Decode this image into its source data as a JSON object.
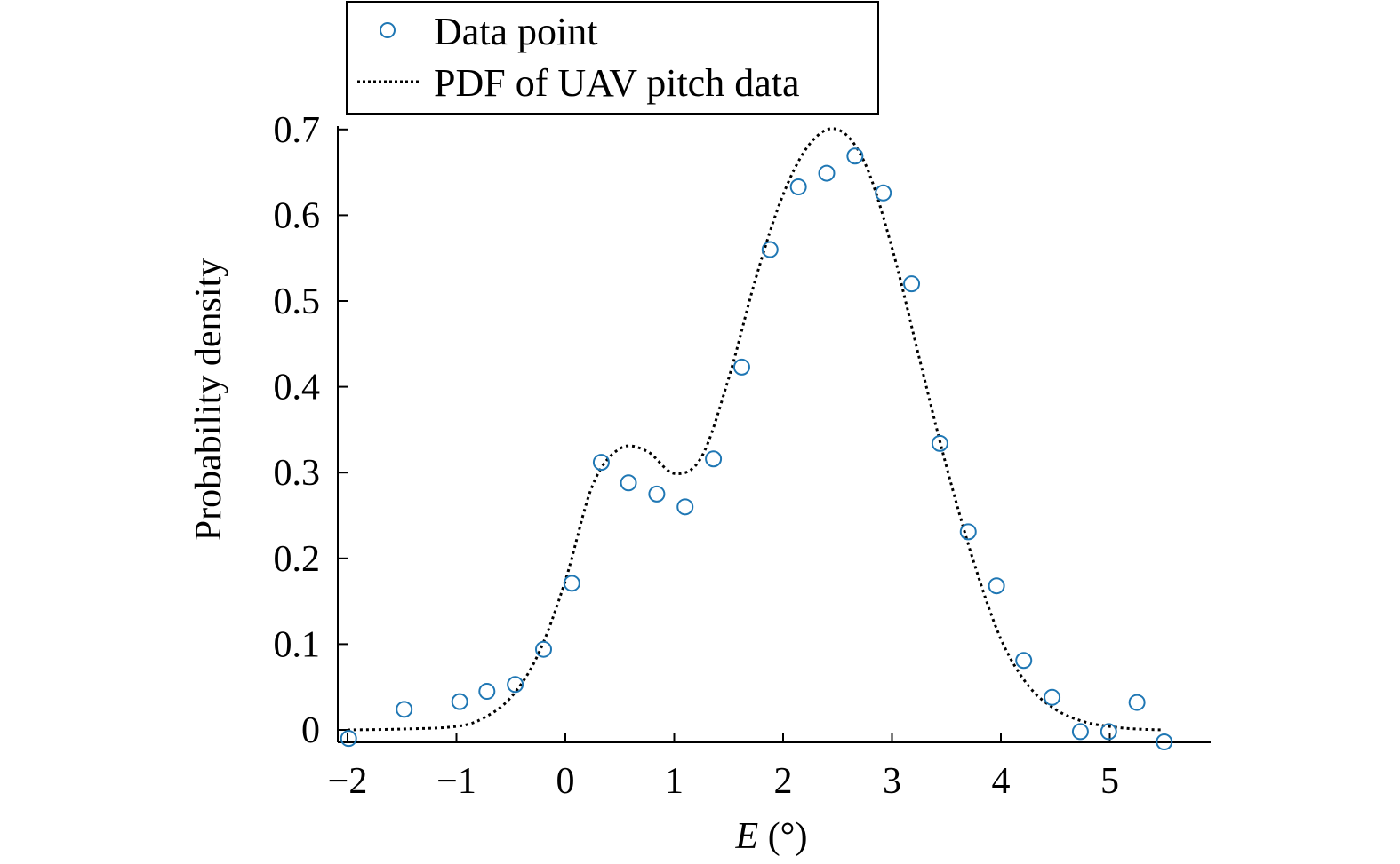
{
  "chart_data": {
    "type": "scatter",
    "title": "",
    "xlabel": {
      "italic": "E",
      "rest": " (°)"
    },
    "ylabel": "Probability density",
    "xlim": [
      -2.1,
      5.9
    ],
    "ylim": [
      0,
      0.7
    ],
    "xticks": [
      -2,
      -1,
      0,
      1,
      2,
      3,
      4,
      5
    ],
    "xtick_labels": [
      "−2",
      "−1",
      "0",
      "1",
      "2",
      "3",
      "4",
      "5"
    ],
    "yticks": [
      0,
      0.1,
      0.2,
      0.3,
      0.4,
      0.5,
      0.6,
      0.7
    ],
    "ytick_labels": [
      "0",
      "0.1",
      "0.2",
      "0.3",
      "0.4",
      "0.5",
      "0.6",
      "0.7"
    ],
    "grid": false,
    "legend_position": "top",
    "colors": {
      "points": "#1f77b4",
      "curve": "#000000",
      "axis": "#000000"
    },
    "series": [
      {
        "name": "Data point",
        "style": "circle-marker",
        "x": [
          -1.99,
          -1.48,
          -0.97,
          -0.72,
          -0.46,
          -0.2,
          0.06,
          0.33,
          0.58,
          0.84,
          1.1,
          1.36,
          1.62,
          1.88,
          2.14,
          2.4,
          2.66,
          2.92,
          3.18,
          3.44,
          3.7,
          3.96,
          4.21,
          4.47,
          4.73,
          4.99,
          5.25,
          5.5
        ],
        "y": [
          -0.01,
          0.024,
          0.033,
          0.045,
          0.053,
          0.094,
          0.171,
          0.312,
          0.288,
          0.275,
          0.26,
          0.316,
          0.423,
          0.56,
          0.633,
          0.649,
          0.669,
          0.626,
          0.52,
          0.334,
          0.231,
          0.168,
          0.081,
          0.038,
          -0.002,
          -0.002,
          0.032,
          -0.014
        ]
      },
      {
        "name": "PDF of UAV pitch data",
        "style": "dotted-line",
        "x": [
          -2.0,
          -1.5,
          -1.0,
          -0.75,
          -0.5,
          -0.25,
          0.0,
          0.25,
          0.5,
          0.75,
          1.0,
          1.25,
          1.5,
          1.75,
          2.0,
          2.25,
          2.5,
          2.75,
          3.0,
          3.25,
          3.5,
          3.75,
          4.0,
          4.25,
          4.5,
          4.75,
          5.0,
          5.25,
          5.5
        ],
        "y": [
          0.0,
          0.001,
          0.004,
          0.014,
          0.038,
          0.088,
          0.174,
          0.285,
          0.328,
          0.325,
          0.299,
          0.318,
          0.41,
          0.527,
          0.624,
          0.684,
          0.7,
          0.661,
          0.562,
          0.434,
          0.307,
          0.196,
          0.106,
          0.052,
          0.024,
          0.01,
          0.004,
          0.001,
          0.0
        ]
      }
    ],
    "legend": [
      {
        "label": "Data point",
        "symbol": "circle"
      },
      {
        "label": "PDF of UAV pitch data",
        "symbol": "dotted-line"
      }
    ]
  }
}
